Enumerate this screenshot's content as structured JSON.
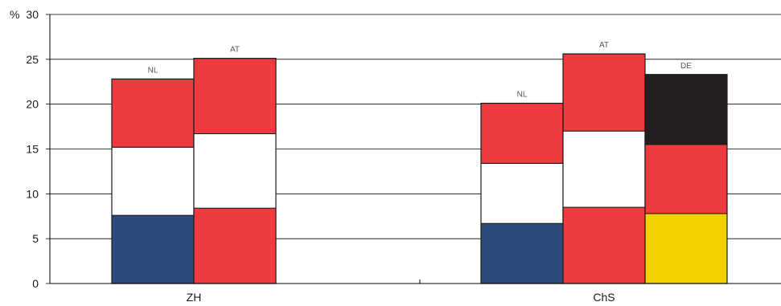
{
  "chart_data": {
    "type": "bar",
    "stacked": true,
    "unit": "%",
    "ylim": [
      0,
      30
    ],
    "yticks": [
      "0",
      "5",
      "10",
      "15",
      "20",
      "25",
      "30"
    ],
    "grid": true,
    "categories": [
      "ZH",
      "ChS"
    ],
    "groups": [
      {
        "category": "ZH",
        "bars": [
          {
            "label": "NL",
            "total": 22.8,
            "segments": [
              {
                "value": 7.6,
                "color": "#2b4b7c"
              },
              {
                "value": 7.6,
                "color": "#ffffff"
              },
              {
                "value": 7.6,
                "color": "#ef3b3f"
              }
            ]
          },
          {
            "label": "AT",
            "total": 25.1,
            "segments": [
              {
                "value": 8.4,
                "color": "#ef3b3f"
              },
              {
                "value": 8.3,
                "color": "#ffffff"
              },
              {
                "value": 8.4,
                "color": "#ef3b3f"
              }
            ]
          }
        ]
      },
      {
        "category": "ChS",
        "bars": [
          {
            "label": "NL",
            "total": 20.1,
            "segments": [
              {
                "value": 6.7,
                "color": "#2b4b7c"
              },
              {
                "value": 6.7,
                "color": "#ffffff"
              },
              {
                "value": 6.7,
                "color": "#ef3b3f"
              }
            ]
          },
          {
            "label": "AT",
            "total": 25.6,
            "segments": [
              {
                "value": 8.5,
                "color": "#ef3b3f"
              },
              {
                "value": 8.5,
                "color": "#ffffff"
              },
              {
                "value": 8.6,
                "color": "#ef3b3f"
              }
            ]
          },
          {
            "label": "DE",
            "total": 23.3,
            "segments": [
              {
                "value": 7.8,
                "color": "#f2d100"
              },
              {
                "value": 7.7,
                "color": "#ef3b3f"
              },
              {
                "value": 7.8,
                "color": "#231f20"
              }
            ]
          }
        ]
      }
    ]
  }
}
